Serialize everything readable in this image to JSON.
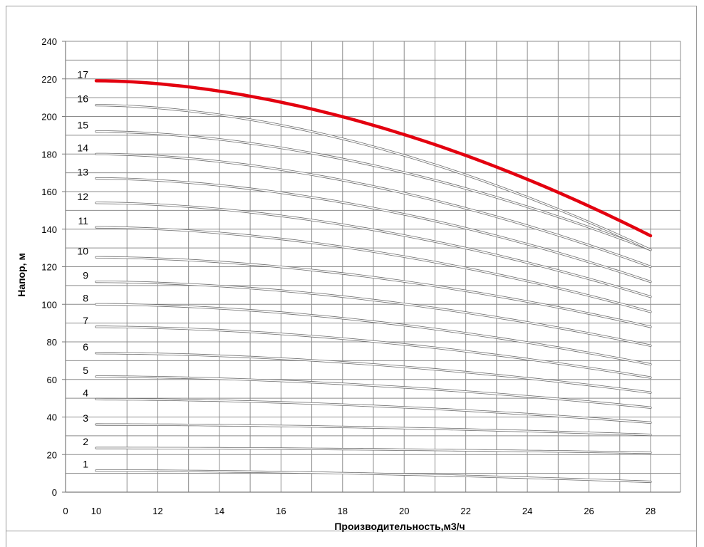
{
  "chart_data": {
    "type": "line",
    "title": "",
    "xlabel": "Производительность,м3/ч",
    "ylabel": "Напор, м",
    "xlim": [
      10,
      28
    ],
    "ylim": [
      0,
      240
    ],
    "x_axis_origin_label": "0",
    "x_ticks": [
      10,
      12,
      14,
      16,
      18,
      20,
      22,
      24,
      26,
      28
    ],
    "y_ticks": [
      0,
      20,
      40,
      60,
      80,
      100,
      120,
      140,
      160,
      180,
      200,
      220,
      240
    ],
    "grid": true,
    "legend": "none",
    "x": [
      10,
      28
    ],
    "series": [
      {
        "name": "1",
        "start": 11.5,
        "end": 5.5,
        "color": "#c8c8c8"
      },
      {
        "name": "2",
        "start": 23.5,
        "end": 21.0,
        "color": "#c8c8c8"
      },
      {
        "name": "3",
        "start": 36.0,
        "end": 30.5,
        "color": "#c8c8c8"
      },
      {
        "name": "4",
        "start": 49.5,
        "end": 37.0,
        "color": "#c8c8c8"
      },
      {
        "name": "5",
        "start": 61.5,
        "end": 45.0,
        "color": "#c8c8c8"
      },
      {
        "name": "6",
        "start": 74.0,
        "end": 53.0,
        "color": "#c8c8c8"
      },
      {
        "name": "7",
        "start": 88.0,
        "end": 61.0,
        "color": "#c8c8c8"
      },
      {
        "name": "8",
        "start": 100.0,
        "end": 68.0,
        "color": "#c8c8c8"
      },
      {
        "name": "9",
        "start": 112.0,
        "end": 78.0,
        "color": "#c8c8c8"
      },
      {
        "name": "10",
        "start": 125.0,
        "end": 88.0,
        "color": "#c8c8c8"
      },
      {
        "name": "11",
        "start": 141.0,
        "end": 96.0,
        "color": "#c8c8c8"
      },
      {
        "name": "12",
        "start": 154.0,
        "end": 104.0,
        "color": "#c8c8c8"
      },
      {
        "name": "13",
        "start": 167.0,
        "end": 112.0,
        "color": "#c8c8c8"
      },
      {
        "name": "14",
        "start": 180.0,
        "end": 120.0,
        "color": "#c8c8c8"
      },
      {
        "name": "15",
        "start": 192.0,
        "end": 129.0,
        "color": "#c8c8c8"
      },
      {
        "name": "16",
        "start": 206.0,
        "end": 129.0,
        "color": "#c8c8c8"
      },
      {
        "name": "17",
        "start": 219.0,
        "end": 136.5,
        "color": "#e3000f",
        "highlight": true
      }
    ]
  }
}
